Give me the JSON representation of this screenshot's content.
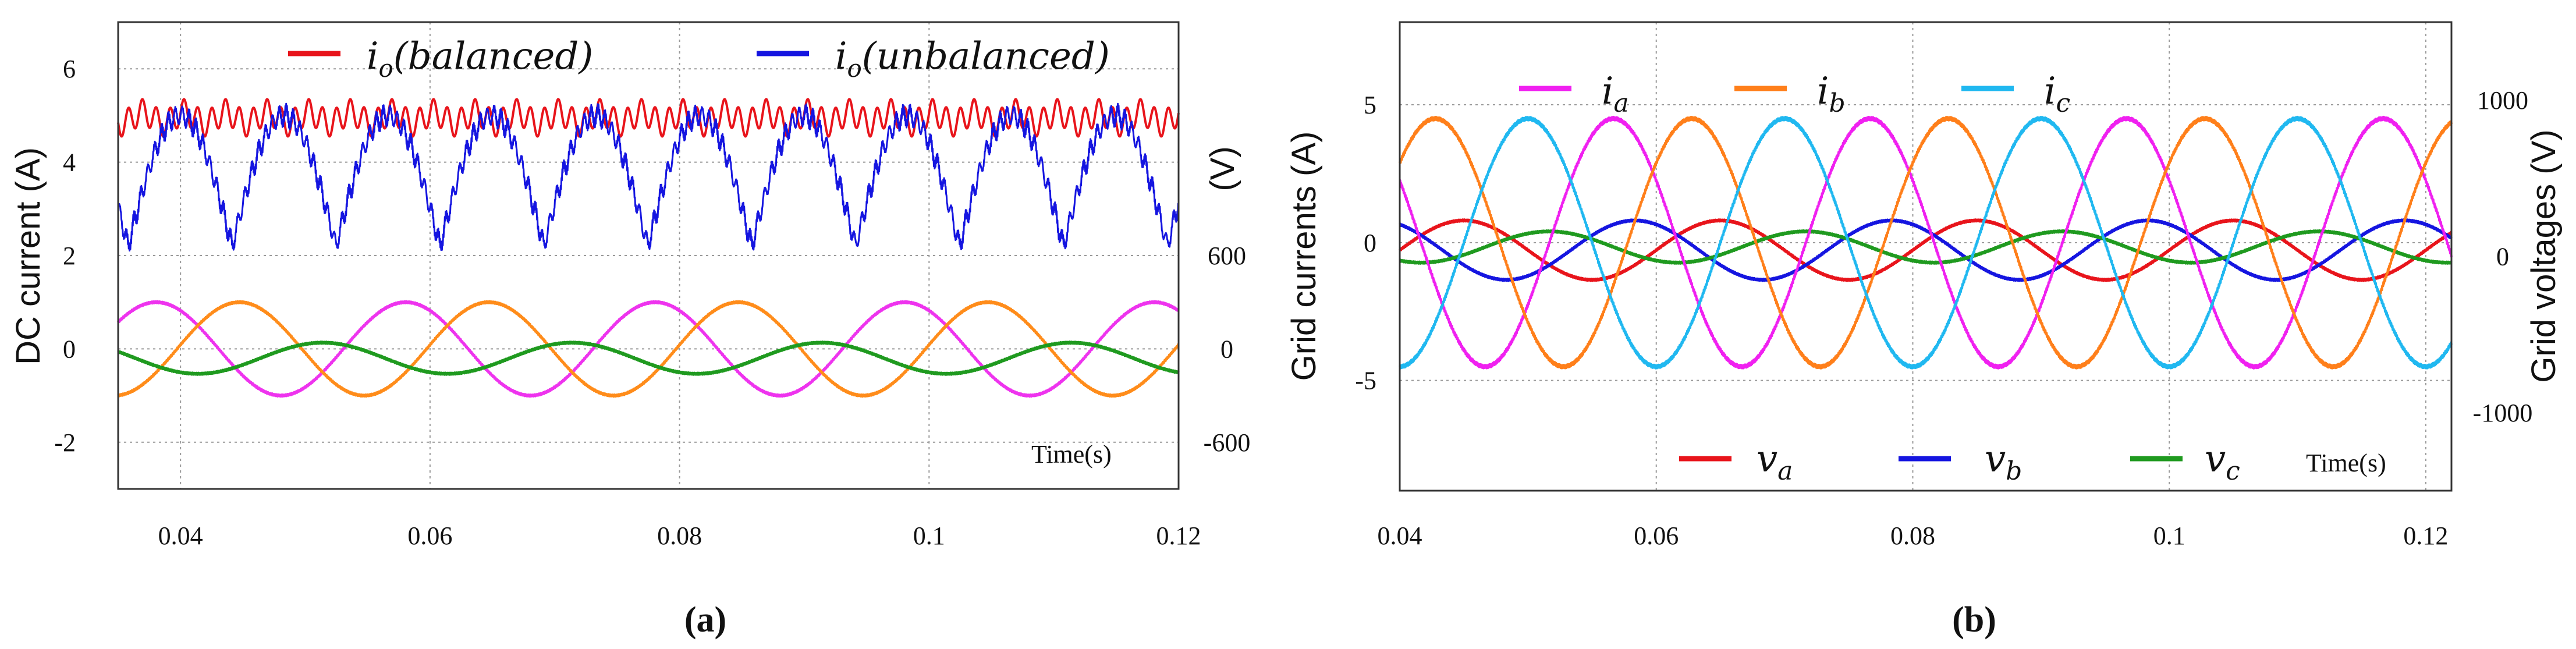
{
  "chart_data": [
    {
      "type": "line",
      "caption": "(a)",
      "x_axis": {
        "range": [
          0.035,
          0.12
        ],
        "ticks": [
          "0.04",
          "0.06",
          "0.08",
          "0.1",
          "0.12"
        ]
      },
      "y_left": {
        "label": "DC current (A)",
        "range": [
          -3,
          7
        ],
        "ticks": [
          {
            "v": 6,
            "t": "6"
          },
          {
            "v": 4,
            "t": "4"
          },
          {
            "v": 2,
            "t": "2"
          },
          {
            "v": 0,
            "t": "0"
          },
          {
            "v": -2,
            "t": "-2"
          }
        ]
      },
      "y_right": {
        "label": "(V)",
        "range": [
          -900,
          2100
        ],
        "ticks": [
          {
            "v": 600,
            "t": "600"
          },
          {
            "v": 0,
            "t": "0"
          },
          {
            "v": -600,
            "t": "-600"
          }
        ]
      },
      "grid": true,
      "time_note": "Time(s)",
      "current_series": [
        {
          "key": "bal",
          "legend": "io(balanced)",
          "color": "#e8141b",
          "axis": "left",
          "mean_A": 4.95,
          "ripple_A": 0.28,
          "ripple_freq_hz": 900
        },
        {
          "key": "unbal",
          "legend": "io(unbalanced)",
          "color": "#1515e0",
          "axis": "left",
          "max_A": 5.0,
          "min_A": 2.2,
          "period_s": 0.00833
        }
      ],
      "voltage_series": [
        {
          "key": "va",
          "color": "#ee33ee",
          "axis": "right",
          "amplitude_V": 300,
          "freq_hz": 50,
          "phase_deg": 125
        },
        {
          "key": "vb",
          "color": "#ff8c1a",
          "axis": "right",
          "amplitude_V": 300,
          "freq_hz": 50,
          "phase_deg": 5
        },
        {
          "key": "vc",
          "color": "#1f9a1f",
          "axis": "right",
          "amplitude_V": 100,
          "freq_hz": 50,
          "phase_deg": 245,
          "offset_V": -60
        }
      ],
      "legend": [
        {
          "series": "bal",
          "base": "i",
          "sub": "o",
          "text": "(balanced)"
        },
        {
          "series": "unbal",
          "base": "i",
          "sub": "o",
          "text": "(unbalanced)"
        }
      ]
    },
    {
      "type": "line",
      "caption": "(b)",
      "x_axis": {
        "range": [
          0.04,
          0.122
        ],
        "ticks": [
          "0.04",
          "0.06",
          "0.08",
          "0.1",
          "0.12"
        ]
      },
      "y_left": {
        "label": "Grid currents (A)",
        "range": [
          -9,
          8
        ],
        "ticks": [
          {
            "v": 5,
            "t": "5"
          },
          {
            "v": 0,
            "t": "0"
          },
          {
            "v": -5,
            "t": "-5"
          }
        ]
      },
      "y_right": {
        "label": "Grid voltages (V)",
        "range": [
          -1500,
          1500
        ],
        "ticks": [
          {
            "v": 1000,
            "t": "1000"
          },
          {
            "v": 0,
            "t": "0"
          },
          {
            "v": -1000,
            "t": "-1000"
          }
        ]
      },
      "grid": true,
      "time_note": "Time(s)",
      "current_series": [
        {
          "key": "ia",
          "color": "#f020f0",
          "axis": "left",
          "amplitude_A": 4.5,
          "freq_hz": 50,
          "phase_deg": 150
        },
        {
          "key": "ib",
          "color": "#ff7f1a",
          "axis": "left",
          "amplitude_A": 4.5,
          "freq_hz": 50,
          "phase_deg": 40
        },
        {
          "key": "ic",
          "color": "#20b8f0",
          "axis": "left",
          "amplitude_A": 4.5,
          "freq_hz": 50,
          "phase_deg": 270
        }
      ],
      "voltage_series": [
        {
          "key": "va",
          "color": "#e8141b",
          "axis": "right",
          "amplitude_V": 190,
          "freq_hz": 50,
          "phase_deg": 0,
          "offset_V": 40
        },
        {
          "key": "vb",
          "color": "#1515e0",
          "axis": "right",
          "amplitude_V": 190,
          "freq_hz": 50,
          "phase_deg": 120,
          "offset_V": 40
        },
        {
          "key": "vc",
          "color": "#1f9a1f",
          "axis": "right",
          "amplitude_V": 100,
          "freq_hz": 50,
          "phase_deg": 240,
          "offset_V": 60
        }
      ],
      "legend": [
        {
          "series": "ia",
          "base": "i",
          "sub": "a",
          "text": ""
        },
        {
          "series": "ib",
          "base": "i",
          "sub": "b",
          "text": ""
        },
        {
          "series": "ic",
          "base": "i",
          "sub": "c",
          "text": ""
        },
        {
          "series": "va",
          "base": "v",
          "sub": "a",
          "text": ""
        },
        {
          "series": "vb",
          "base": "v",
          "sub": "b",
          "text": ""
        },
        {
          "series": "vc",
          "base": "v",
          "sub": "c",
          "text": ""
        }
      ]
    }
  ]
}
